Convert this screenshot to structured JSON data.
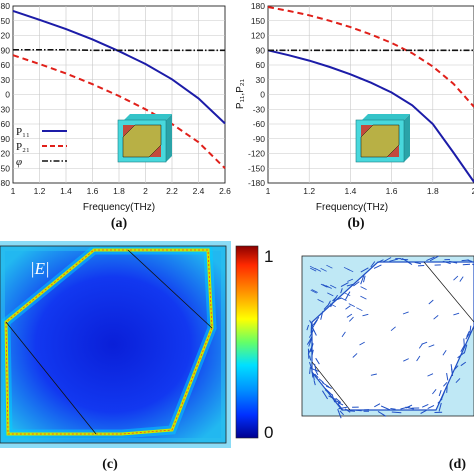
{
  "chart_data": [
    {
      "type": "line",
      "panel_label": "(a)",
      "xlabel": "Frequency(THz)",
      "ylabel": "",
      "xlim": [
        1,
        2.6
      ],
      "ylim": [
        -180,
        180
      ],
      "x_ticks": [
        "1",
        "1.2",
        "1.4",
        "1.6",
        "1.8",
        "2",
        "2.2",
        "2.4",
        "2.6"
      ],
      "y_ticks": [
        "80",
        "50",
        "20",
        "90",
        "60",
        "30",
        "0",
        "30",
        "60",
        "90",
        "20",
        "50",
        "80"
      ],
      "x": [
        1.0,
        1.2,
        1.4,
        1.6,
        1.8,
        2.0,
        2.2,
        2.4,
        2.6
      ],
      "series": [
        {
          "name": "P₁₁",
          "color": "#1c1ca8",
          "dash": "solid",
          "values": [
            170,
            152,
            133,
            112,
            88,
            62,
            31,
            -8,
            -59
          ]
        },
        {
          "name": "P₂₁",
          "color": "#e0201a",
          "dash": "dashed",
          "values": [
            80,
            62,
            43,
            21,
            -3,
            -30,
            -60,
            -97,
            -150
          ]
        },
        {
          "name": "φ",
          "color": "#111111",
          "dash": "dashdot",
          "values": [
            91,
            91,
            91,
            90,
            90,
            90,
            90,
            90,
            90
          ]
        }
      ],
      "grid": true,
      "legend_position": "bottom-left"
    },
    {
      "type": "line",
      "panel_label": "(b)",
      "xlabel": "Frequency(THz)",
      "ylabel": "P₁₁,P₂₁",
      "xlim": [
        1,
        2
      ],
      "ylim": [
        -180,
        180
      ],
      "x_ticks": [
        "1",
        "1.2",
        "1.4",
        "1.6",
        "1.8",
        "2"
      ],
      "y_ticks": [
        "180",
        "150",
        "120",
        "90",
        "60",
        "30",
        "0",
        "-30",
        "-60",
        "-90",
        "-120",
        "-150",
        "-180"
      ],
      "x": [
        1.0,
        1.1,
        1.2,
        1.3,
        1.4,
        1.5,
        1.6,
        1.7,
        1.8,
        1.9,
        2.0
      ],
      "series": [
        {
          "color": "#1c1ca8",
          "dash": "solid",
          "values": [
            90,
            80,
            69,
            56,
            41,
            24,
            4,
            -22,
            -60,
            -118,
            -178
          ]
        },
        {
          "color": "#e0201a",
          "dash": "dashed",
          "values": [
            178,
            170,
            161,
            150,
            137,
            122,
            105,
            84,
            57,
            22,
            -25
          ]
        },
        {
          "color": "#111111",
          "dash": "dashdot",
          "values": [
            90,
            90,
            90,
            90,
            90,
            90,
            90,
            90,
            90,
            90,
            90
          ]
        }
      ],
      "grid": true
    },
    {
      "type": "heatmap",
      "panel_label": "(c)",
      "field_label": "|E|",
      "colorbar": {
        "min_label": "0",
        "max_label": "1",
        "colors": [
          "#8b0000",
          "#ff2a00",
          "#ff9a00",
          "#ffff00",
          "#66ff66",
          "#00e0ff",
          "#0090ff",
          "#0030ff",
          "#00008f"
        ]
      }
    },
    {
      "type": "scatter",
      "panel_label": "(d)",
      "description_colors": {
        "background": "#bfe8f5",
        "arrows": "#1f4fc4"
      }
    }
  ]
}
